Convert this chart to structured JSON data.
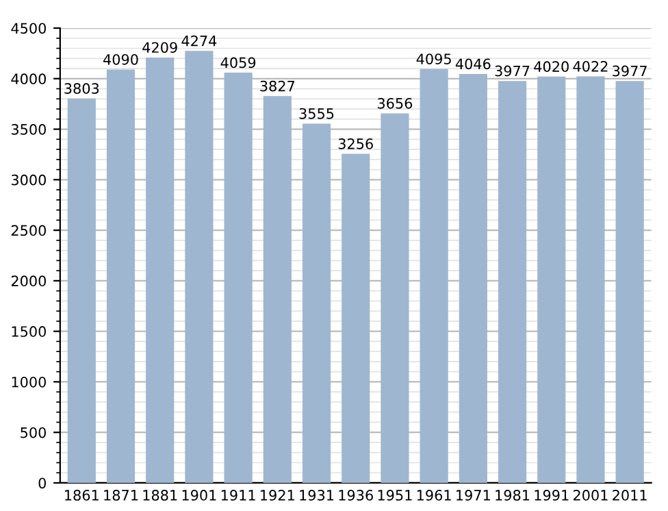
{
  "chart_data": {
    "type": "bar",
    "categories": [
      "1861",
      "1871",
      "1881",
      "1901",
      "1911",
      "1921",
      "1931",
      "1936",
      "1951",
      "1961",
      "1971",
      "1981",
      "1991",
      "2001",
      "2011"
    ],
    "values": [
      3803,
      4090,
      4209,
      4274,
      4059,
      3827,
      3555,
      3256,
      3656,
      4095,
      4046,
      3977,
      4020,
      4022,
      3977
    ],
    "color": "#9fb6d0",
    "ylim": [
      0,
      4500
    ],
    "yticks": [
      0,
      500,
      1000,
      1500,
      2000,
      2500,
      3000,
      3500,
      4000,
      4500
    ],
    "grid": "y",
    "data_labels": true
  }
}
